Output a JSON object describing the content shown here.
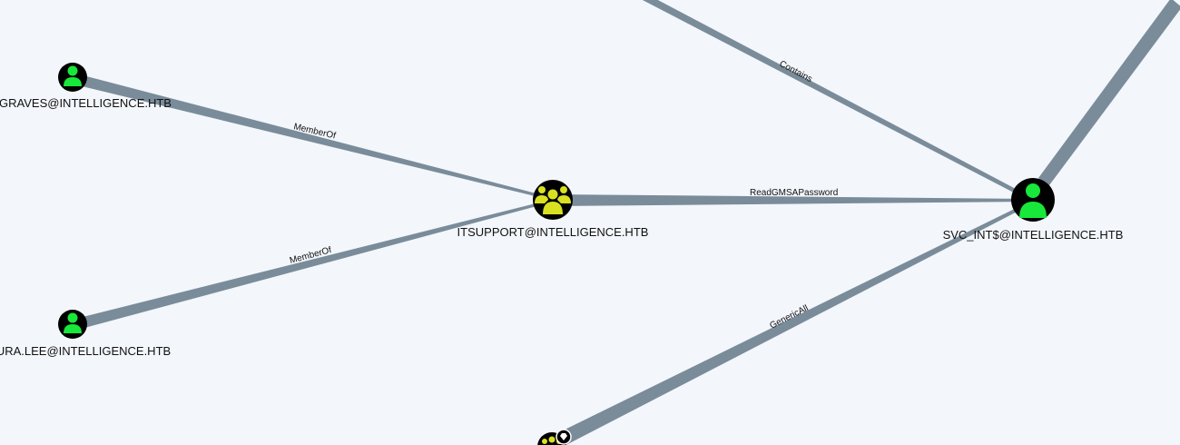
{
  "graph": {
    "nodes": {
      "graves": {
        "label": "GRAVES@INTELLIGENCE.HTB",
        "kind": "user",
        "icon": "user-icon"
      },
      "lauralee": {
        "label": "URA.LEE@INTELLIGENCE.HTB",
        "kind": "user",
        "icon": "user-icon"
      },
      "itsupport": {
        "label": "ITSUPPORT@INTELLIGENCE.HTB",
        "kind": "group",
        "icon": "group-icon"
      },
      "svcint": {
        "label": "SVC_INT$@INTELLIGENCE.HTB",
        "kind": "user",
        "icon": "user-icon"
      },
      "partial": {
        "label": "",
        "kind": "group",
        "icon": "group-icon"
      }
    },
    "edges": {
      "graves_itsupport": {
        "label": "MemberOf"
      },
      "lauralee_itsupport": {
        "label": "MemberOf"
      },
      "itsupport_svcint": {
        "label": "ReadGMSAPassword"
      },
      "contains_svcint": {
        "label": "Contains"
      },
      "partial_svcint": {
        "label": "GenericAll"
      }
    },
    "colors": {
      "background": "#f3f6fb",
      "edge": "#7a8c9a",
      "node_circle": "#000000",
      "user_icon": "#17e83a",
      "group_icon": "#d9e021",
      "label_text": "#111111"
    }
  }
}
